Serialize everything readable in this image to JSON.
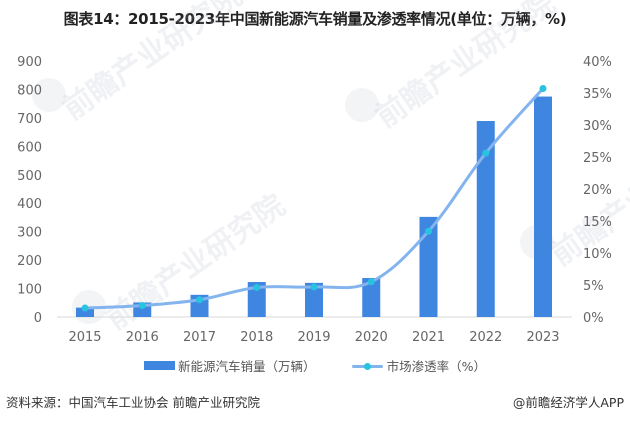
{
  "title": "图表14：2015-2023年中国新能源汽车销量及渗透率情况(单位：万辆，%)",
  "watermark_text": "前瞻产业研究院",
  "legend": {
    "bar_label": "新能源汽车销量（万辆）",
    "line_label": "市场渗透率（%）"
  },
  "footer": {
    "source": "资料来源：中国汽车工业协会 前瞻产业研究院",
    "credit": "@前瞻经济学人APP"
  },
  "colors": {
    "bar": "#3f86e0",
    "line": "#84b4ee",
    "marker": "#27c3e0",
    "axis_text": "#666666",
    "baseline": "#d9d9d9"
  },
  "chart_data": {
    "type": "bar+line",
    "title": "图表14：2015-2023年中国新能源汽车销量及渗透率情况(单位：万辆，%)",
    "categories": [
      "2015",
      "2016",
      "2017",
      "2018",
      "2019",
      "2020",
      "2021",
      "2022",
      "2023"
    ],
    "series": [
      {
        "name": "新能源汽车销量（万辆）",
        "type": "bar",
        "axis": "left",
        "values": [
          33,
          51,
          78,
          123,
          120,
          137,
          352,
          689,
          775
        ]
      },
      {
        "name": "市场渗透率（%）",
        "type": "line",
        "axis": "right",
        "values": [
          1.4,
          1.8,
          2.7,
          4.6,
          4.7,
          5.5,
          13.4,
          25.6,
          35.7
        ]
      }
    ],
    "left_axis": {
      "ylim": [
        0,
        900
      ],
      "ticks": [
        "0",
        "100",
        "200",
        "300",
        "400",
        "500",
        "600",
        "700",
        "800",
        "900"
      ]
    },
    "right_axis": {
      "ylim": [
        0,
        40
      ],
      "ticks": [
        "0%",
        "5%",
        "10%",
        "15%",
        "20%",
        "25%",
        "30%",
        "35%",
        "40%"
      ]
    },
    "xlabel": "",
    "ylabel": "",
    "grid": false,
    "legend_position": "bottom"
  }
}
